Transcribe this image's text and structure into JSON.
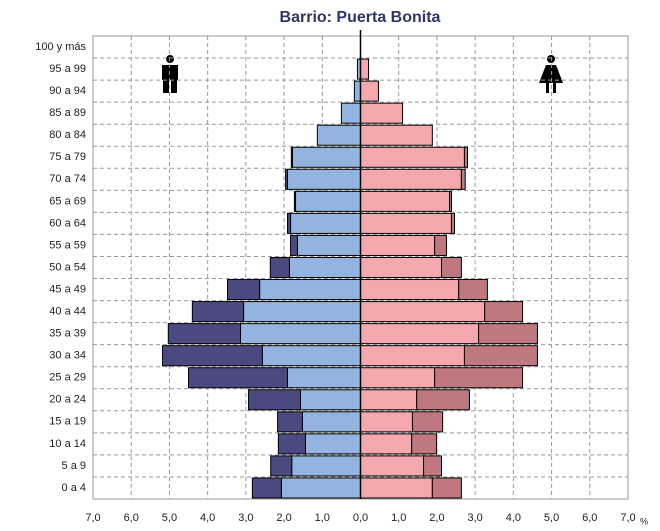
{
  "chart_data": {
    "type": "pyramid",
    "title": "Barrio: Puerta Bonita",
    "categories": [
      "0 a 4",
      "5 a 9",
      "10 a 14",
      "15 a 19",
      "20 a 24",
      "25 a 29",
      "30 a 34",
      "35 a 39",
      "40 a 44",
      "45 a 49",
      "50 a 54",
      "55 a 59",
      "60 a 64",
      "65 a 69",
      "70 a 74",
      "75 a 79",
      "80 a 84",
      "85 a 89",
      "90 a 94",
      "95 a 99",
      "100 y más"
    ],
    "series": [
      {
        "side": "left",
        "color": "#94b4e0",
        "values": [
          2.07,
          1.8,
          1.44,
          1.52,
          1.57,
          1.91,
          2.57,
          3.14,
          3.06,
          2.64,
          1.86,
          1.65,
          1.83,
          1.7,
          1.91,
          1.78,
          1.13,
          0.5,
          0.16,
          0.08,
          0
        ]
      },
      {
        "side": "left",
        "color": "#4a4a80",
        "values": [
          0.76,
          0.55,
          0.71,
          0.65,
          1.36,
          2.59,
          2.61,
          1.89,
          1.34,
          0.84,
          0.5,
          0.18,
          0.08,
          0.03,
          0.05,
          0.03,
          0,
          0,
          0,
          0,
          0
        ]
      },
      {
        "side": "right",
        "color": "#f4a8ae",
        "values": [
          1.88,
          1.65,
          1.34,
          1.36,
          1.47,
          1.94,
          2.72,
          3.09,
          3.25,
          2.57,
          2.12,
          1.94,
          2.38,
          2.33,
          2.64,
          2.72,
          1.88,
          1.1,
          0.47,
          0.21,
          0
        ]
      },
      {
        "side": "right",
        "color": "#c07880",
        "values": [
          0.76,
          0.47,
          0.65,
          0.79,
          1.38,
          2.3,
          1.91,
          1.54,
          0.99,
          0.75,
          0.52,
          0.31,
          0.08,
          0.05,
          0.1,
          0.08,
          0,
          0,
          0,
          0,
          0
        ]
      }
    ],
    "xlim": [
      -7,
      7
    ],
    "xticks": [
      {
        "value": -7,
        "label": "7,0"
      },
      {
        "value": -6,
        "label": "6,0"
      },
      {
        "value": -5,
        "label": "5,0"
      },
      {
        "value": -4,
        "label": "4,0"
      },
      {
        "value": -3,
        "label": "3,0"
      },
      {
        "value": -2,
        "label": "2,0"
      },
      {
        "value": -1,
        "label": "1,0"
      },
      {
        "value": 0,
        "label": "0,0"
      },
      {
        "value": 1,
        "label": "1,0"
      },
      {
        "value": 2,
        "label": "2,0"
      },
      {
        "value": 3,
        "label": "3,0"
      },
      {
        "value": 4,
        "label": "4,0"
      },
      {
        "value": 5,
        "label": "5,0"
      },
      {
        "value": 6,
        "label": "6,0"
      },
      {
        "value": 7,
        "label": "7,0"
      }
    ],
    "x_unit": "%",
    "grid": true
  }
}
